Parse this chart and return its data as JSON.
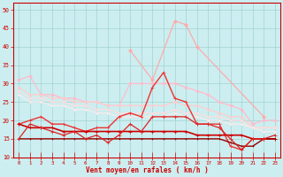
{
  "xlabel": "Vent moyen/en rafales ( km/h )",
  "ylim": [
    10,
    52
  ],
  "xlim": [
    -0.5,
    23.5
  ],
  "yticks": [
    10,
    15,
    20,
    25,
    30,
    35,
    40,
    45,
    50
  ],
  "xticks": [
    0,
    1,
    2,
    3,
    4,
    5,
    6,
    7,
    8,
    9,
    10,
    11,
    12,
    13,
    14,
    15,
    16,
    17,
    18,
    19,
    20,
    21,
    22,
    23
  ],
  "bg_color": "#cceef0",
  "grid_color": "#99cccc",
  "lines": [
    {
      "x": [
        0,
        1,
        2,
        3,
        4,
        5,
        6,
        7,
        8,
        9,
        10,
        11,
        12,
        13,
        14,
        15,
        16,
        17,
        18,
        19,
        20,
        21,
        22,
        23
      ],
      "y": [
        31,
        32,
        27,
        27,
        26,
        26,
        25,
        25,
        24,
        24,
        30,
        30,
        30,
        30,
        30,
        29,
        28,
        27,
        25,
        24,
        23,
        19,
        20,
        20
      ],
      "color": "#ffbbcc",
      "lw": 0.9,
      "marker": "D",
      "ms": 1.8
    },
    {
      "x": [
        0,
        1,
        2,
        3,
        4,
        5,
        6,
        7,
        8,
        9,
        10,
        11,
        12,
        13,
        14,
        15,
        16,
        17,
        18,
        19,
        20,
        21,
        22,
        23
      ],
      "y": [
        29,
        27,
        27,
        26,
        26,
        25,
        25,
        25,
        24,
        24,
        24,
        24,
        24,
        24,
        25,
        24,
        24,
        23,
        22,
        21,
        21,
        18,
        18,
        18
      ],
      "color": "#ffcccc",
      "lw": 0.9,
      "marker": "D",
      "ms": 1.5
    },
    {
      "x": [
        0,
        1,
        2,
        3,
        4,
        5,
        6,
        7,
        8,
        9,
        10,
        11,
        12,
        13,
        14,
        15,
        16,
        17,
        18,
        19,
        20,
        21,
        22,
        23
      ],
      "y": [
        28,
        26,
        26,
        25,
        25,
        24,
        24,
        23,
        23,
        22,
        22,
        22,
        22,
        22,
        23,
        22,
        22,
        21,
        21,
        20,
        20,
        18,
        18,
        18
      ],
      "color": "#ffdddd",
      "lw": 0.8,
      "marker": "D",
      "ms": 1.5
    },
    {
      "x": [
        0,
        1,
        2,
        3,
        4,
        5,
        6,
        7,
        8,
        9,
        10,
        11,
        12,
        13,
        14,
        15,
        16,
        17,
        18,
        19,
        20,
        21,
        22,
        23
      ],
      "y": [
        27,
        25,
        25,
        24,
        24,
        23,
        23,
        22,
        22,
        21,
        21,
        21,
        21,
        21,
        22,
        21,
        21,
        20,
        20,
        19,
        19,
        18,
        17,
        17
      ],
      "color": "#ffeaea",
      "lw": 0.8,
      "marker": "D",
      "ms": 1.2
    },
    {
      "x": [
        0,
        1,
        2,
        3,
        4,
        5,
        6,
        7,
        8,
        9,
        10,
        11,
        12,
        13,
        14,
        15,
        16,
        17,
        18,
        19,
        20,
        21,
        22,
        23
      ],
      "y": [
        null,
        null,
        null,
        null,
        null,
        null,
        null,
        null,
        null,
        null,
        39,
        null,
        31,
        null,
        47,
        46,
        40,
        null,
        null,
        null,
        null,
        null,
        21,
        null
      ],
      "color": "#ffaaaa",
      "lw": 0.9,
      "marker": "D",
      "ms": 2.0
    },
    {
      "x": [
        0,
        1,
        2,
        3,
        4,
        5,
        6,
        7,
        8,
        9,
        10,
        11,
        12,
        13,
        14,
        15,
        16,
        17,
        18,
        19,
        20,
        21,
        22,
        23
      ],
      "y": [
        19,
        20,
        21,
        19,
        19,
        18,
        17,
        18,
        18,
        21,
        22,
        21,
        29,
        33,
        26,
        25,
        19,
        19,
        19,
        13,
        12,
        15,
        15,
        15
      ],
      "color": "#ee3333",
      "lw": 1.0,
      "marker": "+",
      "ms": 3.5
    },
    {
      "x": [
        0,
        1,
        2,
        3,
        4,
        5,
        6,
        7,
        8,
        9,
        10,
        11,
        12,
        13,
        14,
        15,
        16,
        17,
        18,
        19,
        20,
        21,
        22,
        23
      ],
      "y": [
        19,
        18,
        18,
        18,
        17,
        17,
        17,
        17,
        17,
        17,
        17,
        17,
        17,
        17,
        17,
        17,
        16,
        16,
        16,
        16,
        16,
        15,
        15,
        15
      ],
      "color": "#cc0000",
      "lw": 1.2,
      "marker": "+",
      "ms": 2.5
    },
    {
      "x": [
        0,
        1,
        2,
        3,
        4,
        5,
        6,
        7,
        8,
        9,
        10,
        11,
        12,
        13,
        14,
        15,
        16,
        17,
        18,
        19,
        20,
        21,
        22,
        23
      ],
      "y": [
        15,
        15,
        15,
        15,
        15,
        15,
        15,
        15,
        15,
        15,
        15,
        15,
        15,
        15,
        15,
        15,
        15,
        15,
        15,
        14,
        13,
        13,
        15,
        15
      ],
      "color": "#990000",
      "lw": 1.0,
      "marker": "+",
      "ms": 2.0
    },
    {
      "x": [
        0,
        1,
        2,
        3,
        4,
        5,
        6,
        7,
        8,
        9,
        10,
        11,
        12,
        13,
        14,
        15,
        16,
        17,
        18,
        19,
        20,
        21,
        22,
        23
      ],
      "y": [
        15,
        19,
        18,
        17,
        16,
        17,
        15,
        16,
        14,
        16,
        19,
        17,
        21,
        21,
        21,
        21,
        19,
        19,
        18,
        15,
        12,
        15,
        15,
        16
      ],
      "color": "#dd2222",
      "lw": 0.9,
      "marker": "+",
      "ms": 3.0
    }
  ]
}
